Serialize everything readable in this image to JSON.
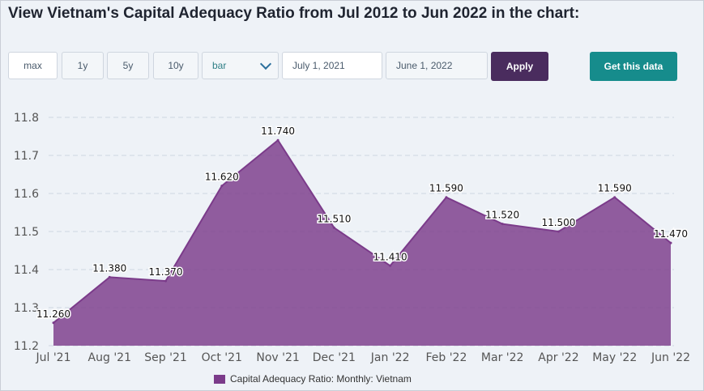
{
  "page": {
    "title": "View Vietnam's Capital Adequacy Ratio from Jul 2012 to Jun 2022 in the chart:"
  },
  "controls": {
    "range_buttons": [
      "max",
      "1y",
      "5y",
      "10y"
    ],
    "chart_type": "bar",
    "start_date": "July 1, 2021",
    "end_date": "June 1, 2022",
    "apply_label": "Apply",
    "get_data_label": "Get this data"
  },
  "colors": {
    "series": "#7b3b8a",
    "apply": "#4a2c5e",
    "get_data": "#168c8c"
  },
  "chart_data": {
    "type": "area",
    "categories": [
      "Jul '21",
      "Aug '21",
      "Sep '21",
      "Oct '21",
      "Nov '21",
      "Dec '21",
      "Jan '22",
      "Feb '22",
      "Mar '22",
      "Apr '22",
      "May '22",
      "Jun '22"
    ],
    "series": [
      {
        "name": "Capital Adequacy Ratio: Monthly: Vietnam",
        "values": [
          11.26,
          11.38,
          11.37,
          11.62,
          11.74,
          11.51,
          11.41,
          11.59,
          11.52,
          11.5,
          11.59,
          11.47
        ],
        "labels": [
          "11.260",
          "11.380",
          "11.370",
          "11.620",
          "11.740",
          "11.510",
          "11.410",
          "11.590",
          "11.520",
          "11.500",
          "11.590",
          "11.470"
        ]
      }
    ],
    "y_ticks": [
      "11.2",
      "11.3",
      "11.4",
      "11.5",
      "11.6",
      "11.7",
      "11.8"
    ],
    "ylim": [
      11.2,
      11.8
    ],
    "grid": true,
    "legend_position": "bottom-center"
  }
}
